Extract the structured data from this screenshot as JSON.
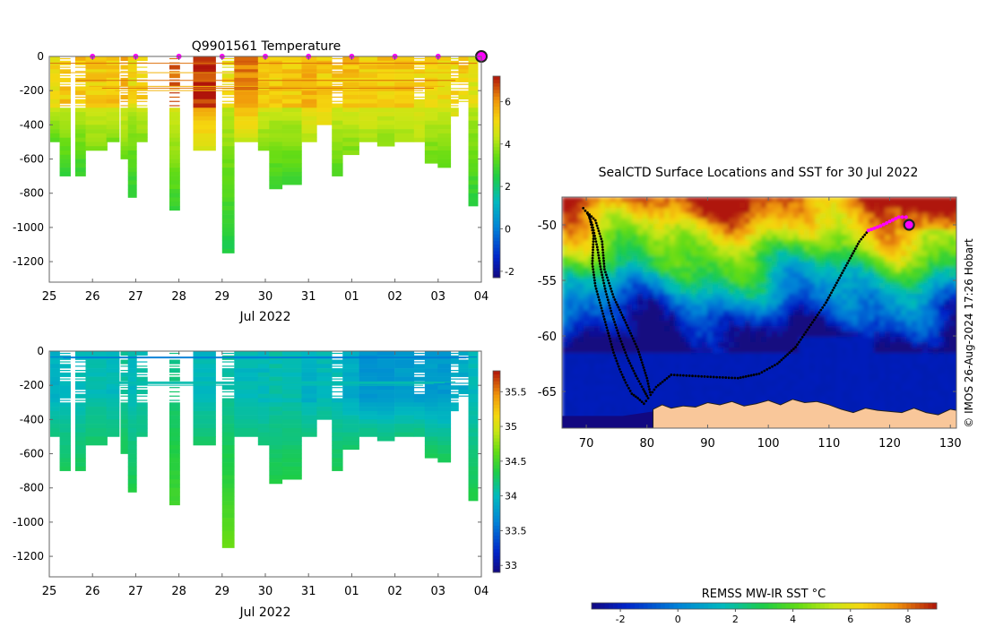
{
  "figure": {
    "credit": "© IMOS 26-Aug-2024 17:26 Hobart"
  },
  "chart_data": [
    {
      "id": "temperature-section",
      "type": "heatmap",
      "title": "Q9901561  Temperature",
      "xlabel": "Jul 2022",
      "ylabel": "",
      "x_tick_labels": [
        "25",
        "26",
        "27",
        "28",
        "29",
        "30",
        "31",
        "01",
        "02",
        "03",
        "04"
      ],
      "x_range_days": [
        0,
        10
      ],
      "y_ticks": [
        0,
        -200,
        -400,
        -600,
        -800,
        -1000,
        -1200
      ],
      "ylim": [
        -1320,
        0
      ],
      "colorbar": {
        "min": -2.3,
        "max": 7.2,
        "ticks": [
          -2,
          0,
          2,
          4,
          6
        ]
      },
      "profile_marker_times": [
        1,
        2,
        3,
        4,
        5,
        6,
        7,
        8,
        9
      ],
      "last_profile_time": 10,
      "profiles": [
        {
          "t": 0.02,
          "w": 0.22,
          "depth": 500,
          "surf": 5.0,
          "mid": 4.4,
          "deep": 3.1
        },
        {
          "t": 0.24,
          "w": 0.25,
          "depth": 700,
          "surf": 5.3,
          "mid": 4.3,
          "deep": 2.7
        },
        {
          "t": 0.6,
          "w": 0.24,
          "depth": 700,
          "surf": 5.4,
          "mid": 4.3,
          "deep": 2.7
        },
        {
          "t": 0.84,
          "w": 0.5,
          "depth": 550,
          "surf": 5.2,
          "mid": 4.4,
          "deep": 3.7
        },
        {
          "t": 1.32,
          "w": 0.3,
          "depth": 500,
          "surf": 5.3,
          "mid": 4.4,
          "deep": 3.6
        },
        {
          "t": 1.65,
          "w": 0.18,
          "depth": 600,
          "surf": 5.6,
          "mid": 4.4,
          "deep": 3.5
        },
        {
          "t": 1.82,
          "w": 0.2,
          "depth": 820,
          "surf": 5.0,
          "mid": 4.2,
          "deep": 2.6
        },
        {
          "t": 2.02,
          "w": 0.25,
          "depth": 500,
          "surf": 5.1,
          "mid": 4.5,
          "deep": 3.6
        },
        {
          "t": 2.78,
          "w": 0.24,
          "depth": 880,
          "surf": 6.6,
          "mid": 4.6,
          "deep": 2.8
        },
        {
          "t": 3.33,
          "w": 0.52,
          "depth": 530,
          "surf": 6.9,
          "mid": 5.8,
          "deep": 4.6
        },
        {
          "t": 4.0,
          "w": 0.28,
          "depth": 1130,
          "surf": 4.8,
          "mid": 4.3,
          "deep": 2.4
        },
        {
          "t": 4.28,
          "w": 0.55,
          "depth": 500,
          "surf": 6.2,
          "mid": 5.6,
          "deep": 4.2
        },
        {
          "t": 4.83,
          "w": 0.26,
          "depth": 550,
          "surf": 5.2,
          "mid": 4.5,
          "deep": 3.6
        },
        {
          "t": 5.09,
          "w": 0.3,
          "depth": 770,
          "surf": 5.3,
          "mid": 4.4,
          "deep": 2.8
        },
        {
          "t": 5.39,
          "w": 0.45,
          "depth": 750,
          "surf": 5.3,
          "mid": 4.4,
          "deep": 2.8
        },
        {
          "t": 5.84,
          "w": 0.35,
          "depth": 500,
          "surf": 5.7,
          "mid": 5.0,
          "deep": 4.0
        },
        {
          "t": 6.19,
          "w": 0.35,
          "depth": 400,
          "surf": 5.3,
          "mid": 5.0,
          "deep": 4.6
        },
        {
          "t": 6.54,
          "w": 0.25,
          "depth": 680,
          "surf": 5.4,
          "mid": 4.5,
          "deep": 3.2
        },
        {
          "t": 6.79,
          "w": 0.38,
          "depth": 570,
          "surf": 5.4,
          "mid": 4.6,
          "deep": 3.6
        },
        {
          "t": 7.17,
          "w": 0.42,
          "depth": 500,
          "surf": 5.2,
          "mid": 4.6,
          "deep": 4.0
        },
        {
          "t": 7.59,
          "w": 0.4,
          "depth": 510,
          "surf": 5.3,
          "mid": 4.6,
          "deep": 3.8
        },
        {
          "t": 7.99,
          "w": 0.45,
          "depth": 490,
          "surf": 5.3,
          "mid": 4.5,
          "deep": 4.0
        },
        {
          "t": 8.44,
          "w": 0.25,
          "depth": 490,
          "surf": 5.1,
          "mid": 4.6,
          "deep": 4.2
        },
        {
          "t": 8.69,
          "w": 0.3,
          "depth": 610,
          "surf": 5.0,
          "mid": 4.5,
          "deep": 3.4
        },
        {
          "t": 8.99,
          "w": 0.3,
          "depth": 630,
          "surf": 5.0,
          "mid": 4.5,
          "deep": 3.4
        },
        {
          "t": 9.29,
          "w": 0.18,
          "depth": 330,
          "surf": 5.0,
          "mid": 4.6,
          "deep": 4.4
        },
        {
          "t": 9.47,
          "w": 0.23,
          "depth": 260,
          "surf": 5.2,
          "mid": 4.8,
          "deep": 4.5
        },
        {
          "t": 9.7,
          "w": 0.22,
          "depth": 860,
          "surf": 4.8,
          "mid": 4.2,
          "deep": 2.6
        }
      ]
    },
    {
      "id": "salinity-section",
      "type": "heatmap",
      "title": "",
      "xlabel": "Jul 2022",
      "ylabel": "",
      "x_tick_labels": [
        "25",
        "26",
        "27",
        "28",
        "29",
        "30",
        "31",
        "01",
        "02",
        "03",
        "04"
      ],
      "x_range_days": [
        0,
        10
      ],
      "y_ticks": [
        0,
        -200,
        -400,
        -600,
        -800,
        -1000,
        -1200
      ],
      "ylim": [
        -1320,
        0
      ],
      "colorbar": {
        "min": 32.9,
        "max": 35.8,
        "ticks": [
          33,
          33.5,
          34,
          34.5,
          35,
          35.5
        ]
      },
      "profiles": [
        {
          "t": 0.02,
          "w": 0.22,
          "depth": 500,
          "surf": 33.95,
          "deep": 34.2
        },
        {
          "t": 0.24,
          "w": 0.25,
          "depth": 700,
          "surf": 34.0,
          "deep": 34.3
        },
        {
          "t": 0.6,
          "w": 0.24,
          "depth": 700,
          "surf": 34.0,
          "deep": 34.3
        },
        {
          "t": 0.84,
          "w": 0.5,
          "depth": 550,
          "surf": 34.05,
          "deep": 34.25
        },
        {
          "t": 1.32,
          "w": 0.3,
          "depth": 500,
          "surf": 34.0,
          "deep": 34.2
        },
        {
          "t": 1.65,
          "w": 0.18,
          "depth": 600,
          "surf": 34.1,
          "deep": 34.3
        },
        {
          "t": 1.82,
          "w": 0.2,
          "depth": 820,
          "surf": 34.0,
          "deep": 34.35
        },
        {
          "t": 2.02,
          "w": 0.25,
          "depth": 500,
          "surf": 34.05,
          "deep": 34.2
        },
        {
          "t": 2.78,
          "w": 0.24,
          "depth": 880,
          "surf": 34.2,
          "deep": 34.5
        },
        {
          "t": 3.33,
          "w": 0.52,
          "depth": 530,
          "surf": 34.0,
          "deep": 34.25
        },
        {
          "t": 4.0,
          "w": 0.28,
          "depth": 1130,
          "surf": 34.1,
          "deep": 34.65
        },
        {
          "t": 4.28,
          "w": 0.55,
          "depth": 500,
          "surf": 34.0,
          "deep": 34.2
        },
        {
          "t": 4.83,
          "w": 0.26,
          "depth": 550,
          "surf": 34.0,
          "deep": 34.2
        },
        {
          "t": 5.09,
          "w": 0.3,
          "depth": 770,
          "surf": 34.05,
          "deep": 34.35
        },
        {
          "t": 5.39,
          "w": 0.45,
          "depth": 750,
          "surf": 34.05,
          "deep": 34.35
        },
        {
          "t": 5.84,
          "w": 0.35,
          "depth": 500,
          "surf": 33.95,
          "deep": 34.2
        },
        {
          "t": 6.19,
          "w": 0.35,
          "depth": 400,
          "surf": 34.0,
          "deep": 34.2
        },
        {
          "t": 6.54,
          "w": 0.25,
          "depth": 680,
          "surf": 34.0,
          "deep": 34.3
        },
        {
          "t": 6.79,
          "w": 0.38,
          "depth": 570,
          "surf": 33.9,
          "deep": 34.25
        },
        {
          "t": 7.17,
          "w": 0.42,
          "depth": 500,
          "surf": 33.75,
          "deep": 34.2
        },
        {
          "t": 7.59,
          "w": 0.4,
          "depth": 510,
          "surf": 33.75,
          "deep": 34.2
        },
        {
          "t": 7.99,
          "w": 0.45,
          "depth": 490,
          "surf": 33.8,
          "deep": 34.2
        },
        {
          "t": 8.44,
          "w": 0.25,
          "depth": 490,
          "surf": 33.8,
          "deep": 34.2
        },
        {
          "t": 8.69,
          "w": 0.3,
          "depth": 610,
          "surf": 33.8,
          "deep": 34.3
        },
        {
          "t": 8.99,
          "w": 0.3,
          "depth": 630,
          "surf": 33.8,
          "deep": 34.3
        },
        {
          "t": 9.29,
          "w": 0.18,
          "depth": 330,
          "surf": 33.9,
          "deep": 34.1
        },
        {
          "t": 9.47,
          "w": 0.23,
          "depth": 260,
          "surf": 33.9,
          "deep": 34.1
        },
        {
          "t": 9.7,
          "w": 0.22,
          "depth": 860,
          "surf": 34.0,
          "deep": 34.35
        }
      ]
    },
    {
      "id": "sst-map",
      "type": "heatmap",
      "title": "SealCTD Surface Locations and SST for 30 Jul 2022",
      "xlabel": "",
      "ylabel": "",
      "x_ticks": [
        70,
        80,
        90,
        100,
        110,
        120,
        130
      ],
      "y_ticks": [
        -50,
        -55,
        -60,
        -65
      ],
      "xlim": [
        66,
        131
      ],
      "ylim": [
        -68.3,
        -47.5
      ],
      "colorbar": {
        "title": "REMSS MW-IR SST °C",
        "min": -3,
        "max": 9,
        "ticks": [
          -2,
          0,
          2,
          4,
          6,
          8
        ]
      },
      "track": [
        [
          69.5,
          -48.5
        ],
        [
          70.5,
          -49.2
        ],
        [
          71.2,
          -51.0
        ],
        [
          71.0,
          -53.5
        ],
        [
          71.5,
          -55.5
        ],
        [
          72.5,
          -57.5
        ],
        [
          73.5,
          -59.5
        ],
        [
          74.5,
          -61.5
        ],
        [
          75.5,
          -63.0
        ],
        [
          76.5,
          -64.2
        ],
        [
          77.5,
          -65.2
        ],
        [
          78.5,
          -65.6
        ],
        [
          79.5,
          -66.1
        ],
        [
          80.2,
          -65.6
        ],
        [
          79.4,
          -64.8
        ],
        [
          78.2,
          -63.6
        ],
        [
          76.8,
          -62.0
        ],
        [
          75.4,
          -60.0
        ],
        [
          74.2,
          -58.0
        ],
        [
          73.2,
          -56.0
        ],
        [
          72.4,
          -54.0
        ],
        [
          71.8,
          -52.0
        ],
        [
          71.0,
          -50.0
        ],
        [
          70.2,
          -48.9
        ],
        [
          71.5,
          -49.6
        ],
        [
          72.6,
          -51.5
        ],
        [
          73.0,
          -54.0
        ],
        [
          74.5,
          -56.5
        ],
        [
          76.5,
          -58.8
        ],
        [
          78.5,
          -61.2
        ],
        [
          80.0,
          -63.8
        ],
        [
          80.6,
          -65.3
        ],
        [
          81.5,
          -64.6
        ],
        [
          84.0,
          -63.5
        ],
        [
          87.5,
          -63.6
        ],
        [
          91.0,
          -63.7
        ],
        [
          95.0,
          -63.8
        ],
        [
          98.5,
          -63.4
        ],
        [
          101.5,
          -62.5
        ],
        [
          104.5,
          -61.0
        ],
        [
          107.0,
          -59.0
        ],
        [
          109.5,
          -57.0
        ],
        [
          111.5,
          -55.0
        ],
        [
          113.5,
          -53.0
        ],
        [
          115.0,
          -51.5
        ],
        [
          116.5,
          -50.5
        ]
      ],
      "recent_track": [
        [
          116.5,
          -50.5
        ],
        [
          118.5,
          -50.1
        ],
        [
          120.0,
          -49.7
        ],
        [
          121.5,
          -49.3
        ],
        [
          122.7,
          -49.3
        ]
      ],
      "last_position": [
        123.2,
        -50.0
      ]
    }
  ]
}
